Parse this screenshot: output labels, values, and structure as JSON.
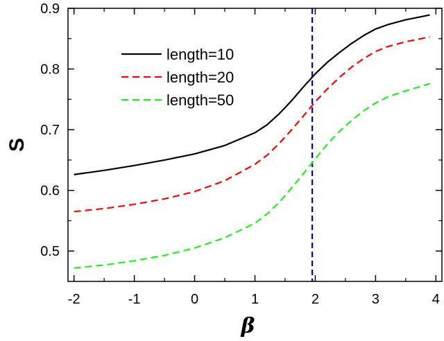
{
  "chart_data": {
    "type": "line",
    "title": "",
    "xlabel": "β",
    "ylabel": "S",
    "xlim": [
      -2.1,
      4.1
    ],
    "ylim": [
      0.45,
      0.9
    ],
    "xticks": [
      -2,
      -1,
      0,
      1,
      2,
      3,
      4
    ],
    "yticks": [
      0.5,
      0.6,
      0.7,
      0.8,
      0.9
    ],
    "xtick_labels": [
      "-2",
      "-1",
      "0",
      "1",
      "2",
      "3",
      "4"
    ],
    "ytick_labels": [
      "0.5",
      "0.6",
      "0.7",
      "0.8",
      "0.9"
    ],
    "grid": false,
    "legend_position": "top-left",
    "vertical_line": {
      "x": 1.95,
      "color": "#0000cc",
      "style": "dashed"
    },
    "series": [
      {
        "name": "length=10",
        "color": "#000000",
        "style": "solid",
        "x": [
          -2,
          -1.5,
          -1,
          -0.5,
          0,
          0.5,
          1,
          1.2,
          1.4,
          1.6,
          1.8,
          2,
          2.2,
          2.4,
          2.6,
          2.8,
          3,
          3.2,
          3.5,
          3.9
        ],
        "y": [
          0.626,
          0.633,
          0.641,
          0.65,
          0.66,
          0.674,
          0.695,
          0.708,
          0.726,
          0.747,
          0.77,
          0.792,
          0.811,
          0.827,
          0.842,
          0.855,
          0.866,
          0.873,
          0.881,
          0.889
        ]
      },
      {
        "name": "length=20",
        "color": "#ff0000",
        "style": "dashed",
        "x": [
          -2,
          -1.5,
          -1,
          -0.5,
          0,
          0.5,
          1,
          1.2,
          1.4,
          1.6,
          1.8,
          2,
          2.2,
          2.4,
          2.6,
          2.8,
          3,
          3.2,
          3.5,
          3.9
        ],
        "y": [
          0.565,
          0.57,
          0.577,
          0.586,
          0.598,
          0.616,
          0.643,
          0.658,
          0.677,
          0.699,
          0.722,
          0.746,
          0.767,
          0.786,
          0.803,
          0.817,
          0.829,
          0.837,
          0.845,
          0.853
        ]
      },
      {
        "name": "length=50",
        "color": "#22ee22",
        "style": "dashed",
        "x": [
          -2,
          -1.5,
          -1,
          -0.5,
          0,
          0.5,
          1,
          1.2,
          1.4,
          1.6,
          1.8,
          2,
          2.2,
          2.4,
          2.6,
          2.8,
          3,
          3.2,
          3.5,
          3.9
        ],
        "y": [
          0.472,
          0.477,
          0.484,
          0.493,
          0.505,
          0.522,
          0.546,
          0.561,
          0.58,
          0.603,
          0.627,
          0.652,
          0.676,
          0.697,
          0.715,
          0.731,
          0.744,
          0.754,
          0.764,
          0.776
        ]
      }
    ]
  }
}
